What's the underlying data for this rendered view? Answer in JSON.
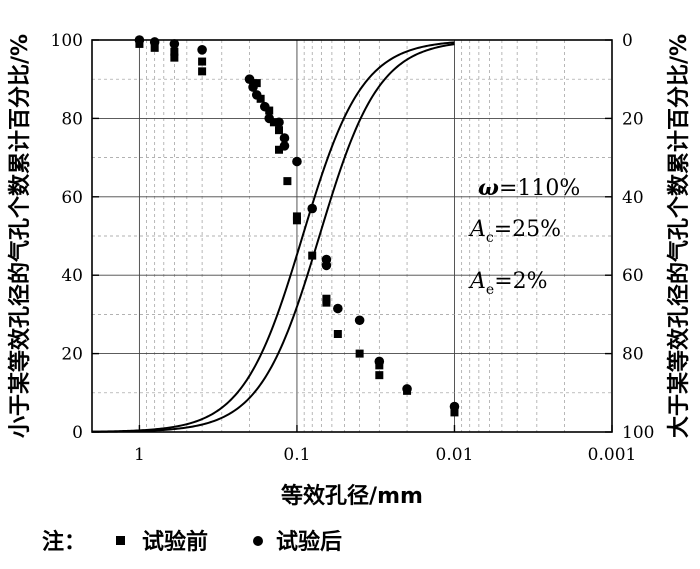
{
  "chart_data": {
    "type": "scatter",
    "x_scale": "log-reversed",
    "xlim": [
      2,
      0.001
    ],
    "ylim": [
      0,
      100
    ],
    "y2lim": [
      100,
      0
    ],
    "grid": true,
    "xlabel": "等效孔径/mm",
    "ylabel": "小于某等效孔径的气孔个数累计百分比/%",
    "y2label": "大于某等效孔径的气孔个数累计百分比/%",
    "x_ticks": [
      {
        "value": 1,
        "label": "1"
      },
      {
        "value": 0.1,
        "label": "0.1"
      },
      {
        "value": 0.01,
        "label": "0.01"
      },
      {
        "value": 0.001,
        "label": "0.001"
      }
    ],
    "y_ticks": [
      {
        "value": 0,
        "label": "0"
      },
      {
        "value": 20,
        "label": "20"
      },
      {
        "value": 40,
        "label": "40"
      },
      {
        "value": 60,
        "label": "60"
      },
      {
        "value": 80,
        "label": "80"
      },
      {
        "value": 100,
        "label": "100"
      }
    ],
    "y2_ticks": [
      {
        "value": 0,
        "label": "0"
      },
      {
        "value": 20,
        "label": "20"
      },
      {
        "value": 40,
        "label": "40"
      },
      {
        "value": 60,
        "label": "60"
      },
      {
        "value": 80,
        "label": "80"
      },
      {
        "value": 100,
        "label": "100"
      }
    ],
    "annotations": [
      {
        "main": "ω",
        "rest": "=110%"
      },
      {
        "main": "A",
        "sub": "c",
        "rest": "=25%"
      },
      {
        "main": "A",
        "sub": "e",
        "rest": "=2%"
      }
    ],
    "legend": {
      "prefix": "注：",
      "items": [
        "试验前",
        "试验后"
      ]
    },
    "series": [
      {
        "name": "试验前",
        "marker": "square",
        "points": [
          {
            "x": 1.0,
            "y": 99
          },
          {
            "x": 0.8,
            "y": 98
          },
          {
            "x": 0.6,
            "y": 97
          },
          {
            "x": 0.6,
            "y": 95.5
          },
          {
            "x": 0.4,
            "y": 94.5
          },
          {
            "x": 0.4,
            "y": 92
          },
          {
            "x": 0.18,
            "y": 89
          },
          {
            "x": 0.17,
            "y": 85
          },
          {
            "x": 0.15,
            "y": 82
          },
          {
            "x": 0.14,
            "y": 79
          },
          {
            "x": 0.13,
            "y": 77
          },
          {
            "x": 0.13,
            "y": 72
          },
          {
            "x": 0.115,
            "y": 64
          },
          {
            "x": 0.1,
            "y": 55
          },
          {
            "x": 0.1,
            "y": 54
          },
          {
            "x": 0.08,
            "y": 45
          },
          {
            "x": 0.065,
            "y": 34
          },
          {
            "x": 0.065,
            "y": 33
          },
          {
            "x": 0.055,
            "y": 25
          },
          {
            "x": 0.04,
            "y": 20
          },
          {
            "x": 0.03,
            "y": 17
          },
          {
            "x": 0.03,
            "y": 14.5
          },
          {
            "x": 0.02,
            "y": 10.5
          },
          {
            "x": 0.01,
            "y": 5
          }
        ]
      },
      {
        "name": "试验后",
        "marker": "circle",
        "points": [
          {
            "x": 1.0,
            "y": 100
          },
          {
            "x": 0.8,
            "y": 99.5
          },
          {
            "x": 0.6,
            "y": 99
          },
          {
            "x": 0.4,
            "y": 97.5
          },
          {
            "x": 0.2,
            "y": 90
          },
          {
            "x": 0.19,
            "y": 88
          },
          {
            "x": 0.18,
            "y": 86
          },
          {
            "x": 0.16,
            "y": 83
          },
          {
            "x": 0.15,
            "y": 80
          },
          {
            "x": 0.13,
            "y": 79
          },
          {
            "x": 0.12,
            "y": 75
          },
          {
            "x": 0.12,
            "y": 73
          },
          {
            "x": 0.1,
            "y": 69
          },
          {
            "x": 0.08,
            "y": 57
          },
          {
            "x": 0.065,
            "y": 44
          },
          {
            "x": 0.065,
            "y": 42.5
          },
          {
            "x": 0.055,
            "y": 31.5
          },
          {
            "x": 0.04,
            "y": 28.5
          },
          {
            "x": 0.03,
            "y": 18
          },
          {
            "x": 0.02,
            "y": 11
          },
          {
            "x": 0.01,
            "y": 6.5
          }
        ]
      }
    ],
    "fitted_curves": [
      {
        "series": "试验前",
        "x50": 0.092,
        "slope": 2.3
      },
      {
        "series": "试验后",
        "x50": 0.072,
        "slope": 2.3
      }
    ]
  }
}
